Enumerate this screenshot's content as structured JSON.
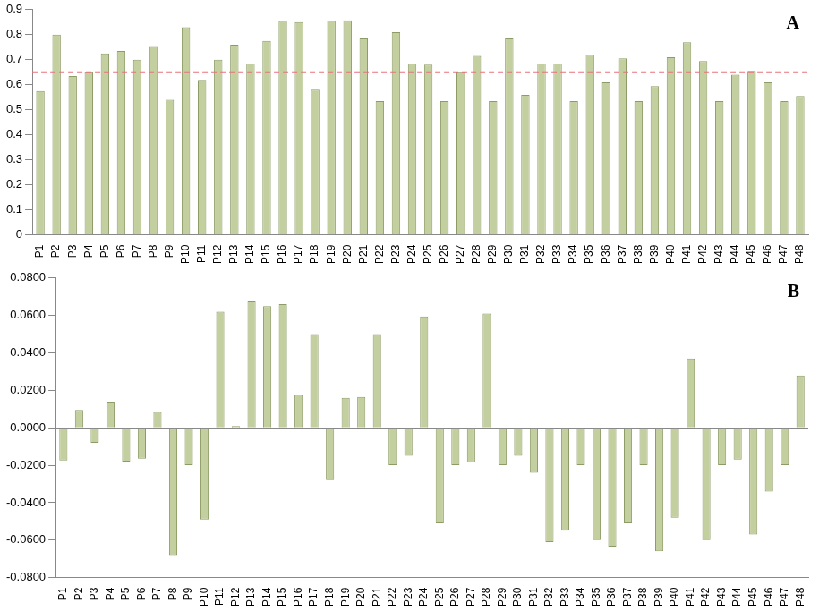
{
  "chart_data": [
    {
      "type": "bar",
      "annotation": "A",
      "categories": [
        "P1",
        "P2",
        "P3",
        "P4",
        "P5",
        "P6",
        "P7",
        "P8",
        "P9",
        "P10",
        "P11",
        "P12",
        "P13",
        "P14",
        "P15",
        "P16",
        "P17",
        "P18",
        "P19",
        "P20",
        "P21",
        "P22",
        "P23",
        "P24",
        "P25",
        "P26",
        "P27",
        "P28",
        "P29",
        "P30",
        "P31",
        "P32",
        "P33",
        "P34",
        "P35",
        "P36",
        "P37",
        "P38",
        "P39",
        "P40",
        "P41",
        "P42",
        "P43",
        "P44",
        "P45",
        "P46",
        "P47",
        "P48"
      ],
      "values": [
        0.575,
        0.8,
        0.635,
        0.65,
        0.725,
        0.735,
        0.7,
        0.755,
        0.54,
        0.83,
        0.62,
        0.7,
        0.76,
        0.685,
        0.775,
        0.855,
        0.85,
        0.58,
        0.855,
        0.857,
        0.785,
        0.535,
        0.81,
        0.685,
        0.68,
        0.535,
        0.65,
        0.715,
        0.535,
        0.785,
        0.56,
        0.685,
        0.685,
        0.535,
        0.72,
        0.61,
        0.705,
        0.535,
        0.595,
        0.71,
        0.77,
        0.695,
        0.535,
        0.64,
        0.655,
        0.61,
        0.535,
        0.555
      ],
      "color": "#c3cf9f",
      "threshold": 0.65,
      "ylim": [
        0,
        0.9
      ],
      "yticks": [
        0,
        0.1,
        0.2,
        0.3,
        0.4,
        0.5,
        0.6,
        0.7,
        0.8,
        0.9
      ],
      "grid": false
    },
    {
      "type": "bar",
      "annotation": "B",
      "categories": [
        "P1",
        "P2",
        "P3",
        "P4",
        "P5",
        "P6",
        "P7",
        "P8",
        "P9",
        "P10",
        "P11",
        "P12",
        "P13",
        "P14",
        "P15",
        "P16",
        "P17",
        "P18",
        "P19",
        "P20",
        "P21",
        "P22",
        "P23",
        "P24",
        "P25",
        "P26",
        "P27",
        "P28",
        "P29",
        "P30",
        "P31",
        "P32",
        "P33",
        "P34",
        "P35",
        "P36",
        "P37",
        "P38",
        "P39",
        "P40",
        "P41",
        "P42",
        "P43",
        "P44",
        "P45",
        "P46",
        "P47",
        "P48"
      ],
      "values": [
        -0.0175,
        0.0095,
        -0.008,
        0.014,
        -0.018,
        -0.0165,
        0.0085,
        -0.068,
        -0.02,
        -0.049,
        0.062,
        0.001,
        0.0675,
        0.065,
        0.066,
        0.0175,
        0.05,
        -0.028,
        0.016,
        0.0165,
        0.05,
        -0.02,
        -0.015,
        0.0595,
        -0.051,
        -0.02,
        -0.0185,
        0.061,
        -0.02,
        -0.015,
        -0.024,
        -0.061,
        -0.055,
        -0.02,
        -0.06,
        -0.0635,
        -0.051,
        -0.02,
        -0.066,
        -0.048,
        0.037,
        -0.06,
        -0.02,
        -0.017,
        -0.057,
        -0.034,
        -0.02,
        0.028
      ],
      "color": "#c3cf9f",
      "ylim": [
        -0.08,
        0.08
      ],
      "yticks": [
        {
          "value": -0.08,
          "label": "-0.0800"
        },
        {
          "value": -0.06,
          "label": "-0.0600"
        },
        {
          "value": -0.04,
          "label": "-0.0400"
        },
        {
          "value": -0.02,
          "label": "-0.0200"
        },
        {
          "value": 0,
          "label": "0.0000"
        },
        {
          "value": 0.02,
          "label": "0.0200"
        },
        {
          "value": 0.04,
          "label": "0.0400"
        },
        {
          "value": 0.06,
          "label": "0.0600"
        },
        {
          "value": 0.08,
          "label": "0.0800"
        }
      ],
      "grid": false
    }
  ]
}
